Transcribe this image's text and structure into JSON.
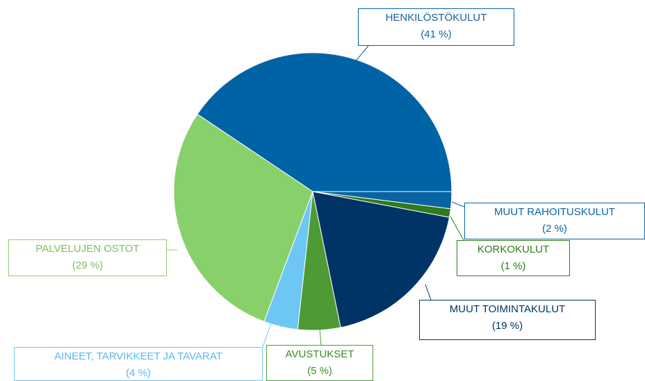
{
  "chart_data": {
    "type": "pie",
    "categories": [
      "HENKILÖSTÖKULUT",
      "PALVELUJEN OSTOT",
      "AINEET, TARVIKKEET JA TAVARAT",
      "AVUSTUKSET",
      "MUUT TOIMINTAKULUT",
      "KORKOKULUT",
      "MUUT RAHOITUSKULUT"
    ],
    "values": [
      41,
      29,
      4,
      5,
      19,
      1,
      2
    ],
    "value_labels": [
      "(41 %)",
      "(29 %)",
      "(4 %)",
      "(5 %)",
      "(19 %)",
      "(1 %)",
      "(2 %)"
    ],
    "colors": [
      "#0063a6",
      "#88d06a",
      "#6ec6f5",
      "#4e9a35",
      "#003366",
      "#2f7a1f",
      "#0a64a4"
    ]
  }
}
